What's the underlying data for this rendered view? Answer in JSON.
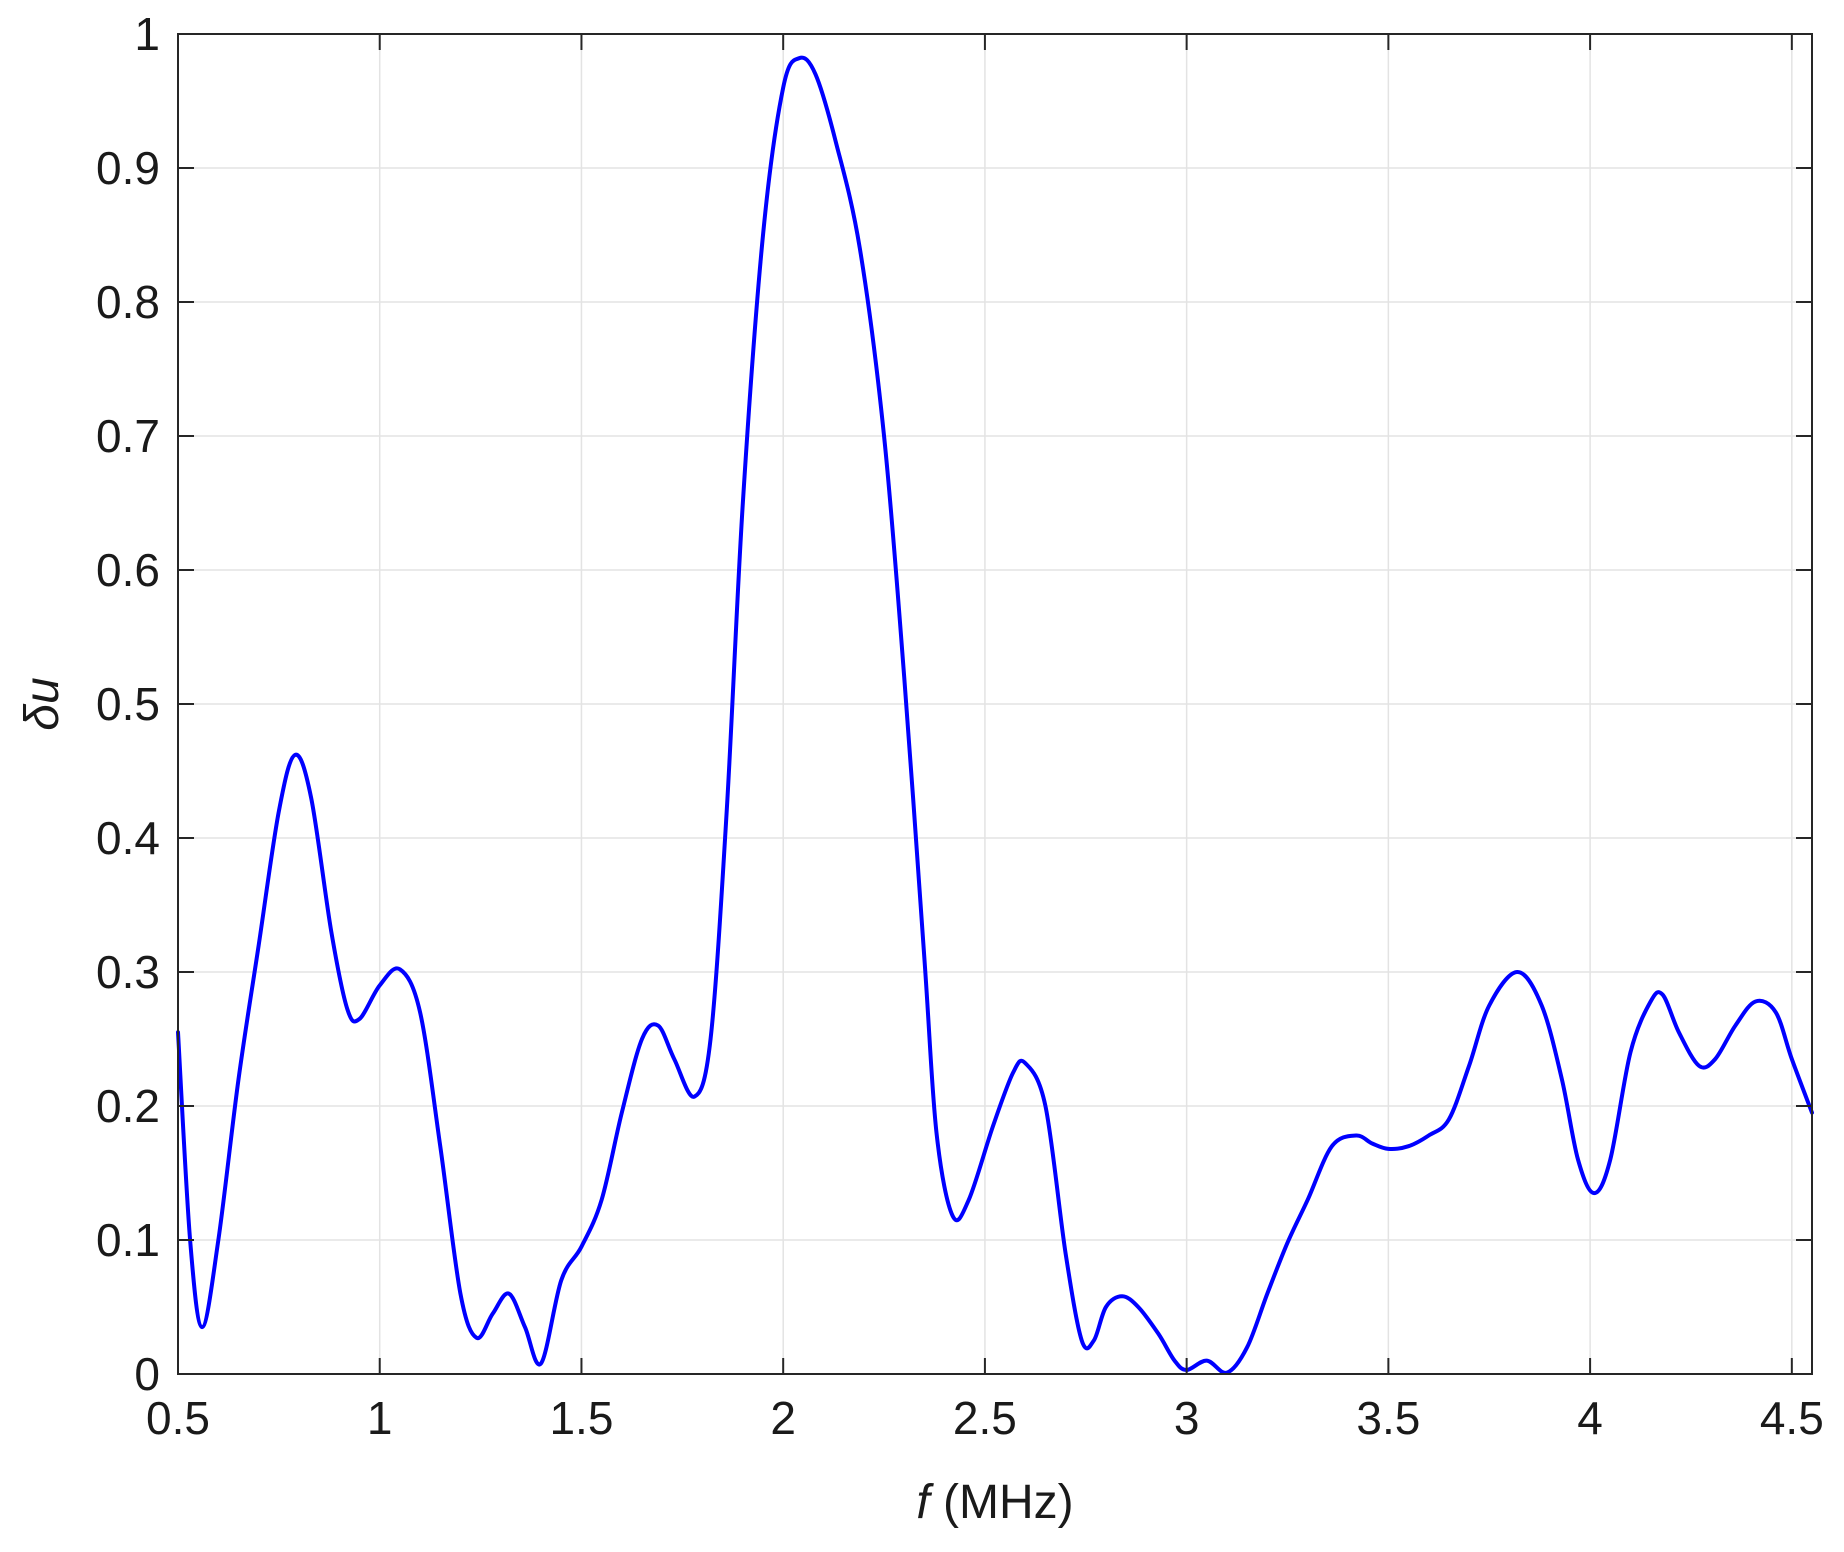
{
  "chart_data": {
    "type": "line",
    "xlabel": {
      "italic": "f",
      "rest": " (MHz)"
    },
    "ylabel": "δu",
    "xlim": [
      0.5,
      4.55
    ],
    "ylim": [
      0,
      1
    ],
    "grid": true,
    "xticks": [
      0.5,
      1,
      1.5,
      2,
      2.5,
      3,
      3.5,
      4,
      4.5
    ],
    "xtick_labels": [
      "0.5",
      "1",
      "1.5",
      "2",
      "2.5",
      "3",
      "3.5",
      "4",
      "4.5"
    ],
    "yticks": [
      0,
      0.1,
      0.2,
      0.3,
      0.4,
      0.5,
      0.6,
      0.7,
      0.8,
      0.9,
      1
    ],
    "ytick_labels": [
      "0",
      "0.1",
      "0.2",
      "0.3",
      "0.4",
      "0.5",
      "0.6",
      "0.7",
      "0.8",
      "0.9",
      "1"
    ],
    "series": [
      {
        "color": "#0000ff",
        "points": [
          [
            0.5,
            0.255
          ],
          [
            0.53,
            0.1
          ],
          [
            0.56,
            0.035
          ],
          [
            0.6,
            0.1
          ],
          [
            0.65,
            0.22
          ],
          [
            0.7,
            0.32
          ],
          [
            0.75,
            0.42
          ],
          [
            0.79,
            0.462
          ],
          [
            0.83,
            0.43
          ],
          [
            0.88,
            0.33
          ],
          [
            0.92,
            0.272
          ],
          [
            0.95,
            0.265
          ],
          [
            1.0,
            0.29
          ],
          [
            1.05,
            0.302
          ],
          [
            1.1,
            0.27
          ],
          [
            1.15,
            0.17
          ],
          [
            1.2,
            0.06
          ],
          [
            1.24,
            0.027
          ],
          [
            1.28,
            0.045
          ],
          [
            1.32,
            0.06
          ],
          [
            1.36,
            0.035
          ],
          [
            1.4,
            0.008
          ],
          [
            1.45,
            0.07
          ],
          [
            1.5,
            0.095
          ],
          [
            1.55,
            0.13
          ],
          [
            1.6,
            0.195
          ],
          [
            1.65,
            0.25
          ],
          [
            1.69,
            0.26
          ],
          [
            1.73,
            0.235
          ],
          [
            1.78,
            0.207
          ],
          [
            1.82,
            0.25
          ],
          [
            1.86,
            0.42
          ],
          [
            1.9,
            0.65
          ],
          [
            1.95,
            0.85
          ],
          [
            2.0,
            0.96
          ],
          [
            2.04,
            0.982
          ],
          [
            2.08,
            0.97
          ],
          [
            2.13,
            0.92
          ],
          [
            2.19,
            0.84
          ],
          [
            2.25,
            0.7
          ],
          [
            2.3,
            0.52
          ],
          [
            2.35,
            0.31
          ],
          [
            2.38,
            0.18
          ],
          [
            2.42,
            0.118
          ],
          [
            2.46,
            0.13
          ],
          [
            2.52,
            0.185
          ],
          [
            2.57,
            0.225
          ],
          [
            2.6,
            0.232
          ],
          [
            2.65,
            0.2
          ],
          [
            2.7,
            0.09
          ],
          [
            2.74,
            0.025
          ],
          [
            2.77,
            0.025
          ],
          [
            2.8,
            0.05
          ],
          [
            2.84,
            0.058
          ],
          [
            2.88,
            0.05
          ],
          [
            2.93,
            0.03
          ],
          [
            2.97,
            0.01
          ],
          [
            3.0,
            0.003
          ],
          [
            3.05,
            0.01
          ],
          [
            3.1,
            0.001
          ],
          [
            3.15,
            0.02
          ],
          [
            3.2,
            0.06
          ],
          [
            3.25,
            0.098
          ],
          [
            3.3,
            0.13
          ],
          [
            3.36,
            0.17
          ],
          [
            3.42,
            0.178
          ],
          [
            3.46,
            0.172
          ],
          [
            3.5,
            0.168
          ],
          [
            3.55,
            0.17
          ],
          [
            3.6,
            0.178
          ],
          [
            3.65,
            0.19
          ],
          [
            3.7,
            0.23
          ],
          [
            3.75,
            0.275
          ],
          [
            3.82,
            0.3
          ],
          [
            3.88,
            0.275
          ],
          [
            3.93,
            0.22
          ],
          [
            3.97,
            0.16
          ],
          [
            4.01,
            0.135
          ],
          [
            4.05,
            0.16
          ],
          [
            4.1,
            0.24
          ],
          [
            4.15,
            0.278
          ],
          [
            4.18,
            0.283
          ],
          [
            4.22,
            0.255
          ],
          [
            4.27,
            0.23
          ],
          [
            4.31,
            0.235
          ],
          [
            4.36,
            0.26
          ],
          [
            4.41,
            0.278
          ],
          [
            4.46,
            0.27
          ],
          [
            4.5,
            0.235
          ],
          [
            4.55,
            0.195
          ]
        ]
      }
    ]
  }
}
